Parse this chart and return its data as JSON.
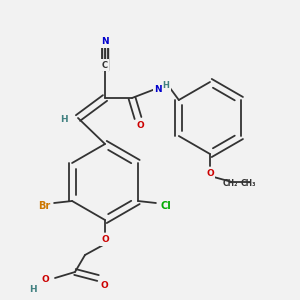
{
  "bg_color": "#f2f2f2",
  "bond_color": "#333333",
  "atom_colors": {
    "N": "#0000cc",
    "O": "#cc0000",
    "Br": "#cc7700",
    "Cl": "#00aa00",
    "H": "#408080",
    "C": "#333333"
  }
}
